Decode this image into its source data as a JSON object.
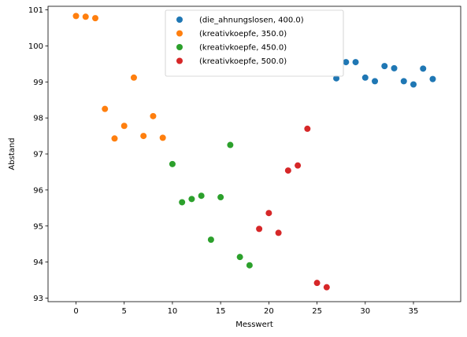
{
  "chart_data": {
    "type": "scatter",
    "xlabel": "Messwert",
    "ylabel": "Abstand",
    "xlim": [
      -2.9,
      39.9
    ],
    "ylim": [
      92.9,
      101.1
    ],
    "xticks": [
      0,
      5,
      10,
      15,
      20,
      25,
      30,
      35
    ],
    "yticks": [
      93,
      94,
      95,
      96,
      97,
      98,
      99,
      100,
      101
    ],
    "grid": false,
    "legend_position": "top-center",
    "series": [
      {
        "name": "(die_ahnungslosen, 400.0)",
        "color": "#1f77b4",
        "x": [
          27,
          28,
          29,
          30,
          31,
          32,
          33,
          34,
          35,
          36,
          37
        ],
        "y": [
          99.1,
          99.55,
          99.55,
          99.12,
          99.02,
          99.44,
          99.38,
          99.02,
          98.93,
          99.37,
          99.08
        ]
      },
      {
        "name": "(kreativkoepfe, 350.0)",
        "color": "#ff7f0e",
        "x": [
          0,
          1,
          2,
          3,
          4,
          5,
          6,
          7,
          8,
          9
        ],
        "y": [
          100.83,
          100.81,
          100.77,
          98.25,
          97.43,
          97.78,
          99.12,
          97.5,
          98.05,
          97.45
        ]
      },
      {
        "name": "(kreativkoepfe, 450.0)",
        "color": "#2ca02c",
        "x": [
          10,
          11,
          12,
          13,
          14,
          15,
          16,
          17,
          18
        ],
        "y": [
          96.72,
          95.66,
          95.75,
          95.84,
          94.62,
          95.8,
          97.25,
          94.14,
          93.91
        ]
      },
      {
        "name": "(kreativkoepfe, 500.0)",
        "color": "#d62728",
        "x": [
          19,
          20,
          21,
          22,
          23,
          24,
          25,
          26
        ],
        "y": [
          94.92,
          95.36,
          94.81,
          96.54,
          96.68,
          97.7,
          93.42,
          93.3
        ]
      }
    ]
  }
}
